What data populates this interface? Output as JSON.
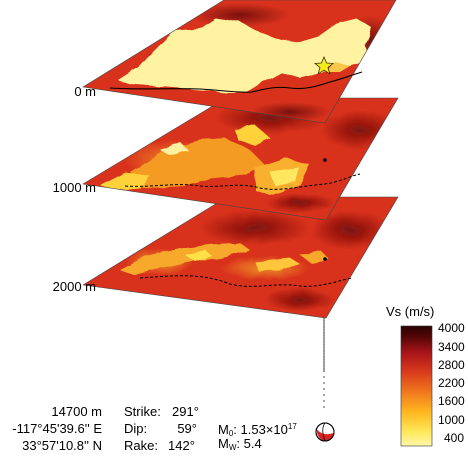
{
  "depth_labels": [
    "0 m",
    "1000 m",
    "2000 m"
  ],
  "colorbar": {
    "title": "Vs (m/s)",
    "ticks": [
      "4000",
      "3400",
      "2800",
      "2200",
      "1600",
      "1000",
      "400"
    ],
    "range": [
      400,
      4000
    ],
    "colors": [
      "#fff7a8",
      "#ffe85a",
      "#ffb81f",
      "#f0781e",
      "#d83a1c",
      "#a8141a",
      "#5a0708",
      "#2a0103"
    ]
  },
  "source": {
    "depth": "14700 m",
    "longitude": "-117°45'39.6'' E",
    "latitude": "33°57'10.8'' N"
  },
  "mechanism": {
    "strike_label": "Strike:",
    "strike_value": "291°",
    "dip_label": "Dip:",
    "dip_value": "59°",
    "rake_label": "Rake:",
    "rake_value": "142°"
  },
  "moment": {
    "m0_symbol": "M",
    "m0_sub": "0",
    "m0_text": ":  1.53×10",
    "m0_exp": "17",
    "mw_symbol": "M",
    "mw_sub": "W",
    "mw_text": ":  5.4"
  },
  "colors": {
    "epicenter_star": "#f4ec1c",
    "beachball_fill": "#d62420",
    "line_color": "#000000"
  },
  "icons": [
    "epicenter-star-icon",
    "beachball-icon"
  ]
}
